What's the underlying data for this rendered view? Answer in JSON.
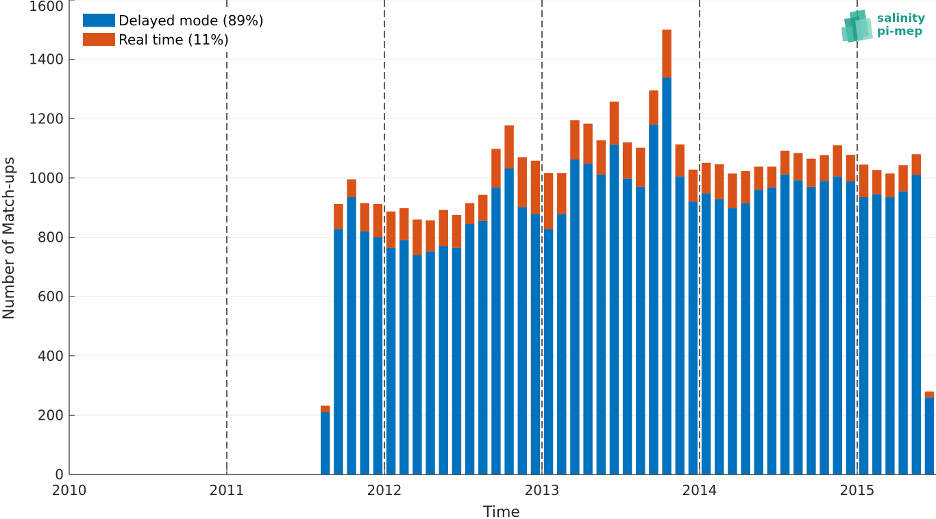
{
  "chart_data": {
    "type": "bar",
    "stacked": true,
    "xlabel": "Time",
    "ylabel": "Number of Match-ups",
    "ylim": [
      0,
      1600
    ],
    "yticks": [
      0,
      200,
      400,
      600,
      800,
      1000,
      1200,
      1400,
      1600
    ],
    "xlim": [
      "2010-01",
      "2015-07"
    ],
    "xticks": [
      "2010",
      "2011",
      "2012",
      "2013",
      "2014",
      "2015"
    ],
    "year_separators": [
      "2011",
      "2012",
      "2013",
      "2014",
      "2015"
    ],
    "legend_placement": "top-left",
    "grid": true,
    "categories": [
      "2011-08",
      "2011-09",
      "2011-10",
      "2011-11",
      "2011-12",
      "2012-01",
      "2012-02",
      "2012-03",
      "2012-04",
      "2012-05",
      "2012-06",
      "2012-07",
      "2012-08",
      "2012-09",
      "2012-10",
      "2012-11",
      "2012-12",
      "2013-01",
      "2013-02",
      "2013-03",
      "2013-04",
      "2013-05",
      "2013-06",
      "2013-07",
      "2013-08",
      "2013-09",
      "2013-10",
      "2013-11",
      "2013-12",
      "2014-01",
      "2014-02",
      "2014-03",
      "2014-04",
      "2014-05",
      "2014-06",
      "2014-07",
      "2014-08",
      "2014-09",
      "2014-10",
      "2014-11",
      "2014-12",
      "2015-01",
      "2015-02",
      "2015-03",
      "2015-04",
      "2015-05",
      "2015-06"
    ],
    "series": [
      {
        "name": "Delayed mode (89%)",
        "color": "#0072bd",
        "values": [
          210,
          828,
          935,
          820,
          800,
          765,
          790,
          740,
          752,
          770,
          765,
          845,
          855,
          968,
          1032,
          902,
          878,
          828,
          878,
          1062,
          1048,
          1012,
          1112,
          998,
          970,
          1180,
          1338,
          1005,
          920,
          948,
          928,
          898,
          915,
          960,
          968,
          1012,
          992,
          970,
          990,
          1005,
          988,
          935,
          945,
          935,
          955,
          1010,
          260
        ]
      },
      {
        "name": "Real time (11%)",
        "color": "#d95319",
        "values": [
          22,
          84,
          60,
          95,
          112,
          122,
          108,
          120,
          105,
          122,
          110,
          70,
          88,
          130,
          145,
          168,
          180,
          188,
          138,
          133,
          135,
          115,
          145,
          122,
          132,
          115,
          162,
          108,
          108,
          103,
          118,
          117,
          108,
          78,
          70,
          80,
          92,
          95,
          87,
          105,
          90,
          110,
          82,
          80,
          88,
          70,
          20
        ]
      }
    ]
  },
  "logo": {
    "line1": "salinity",
    "line2": "pi-mep",
    "color": "#1e9c8a"
  }
}
